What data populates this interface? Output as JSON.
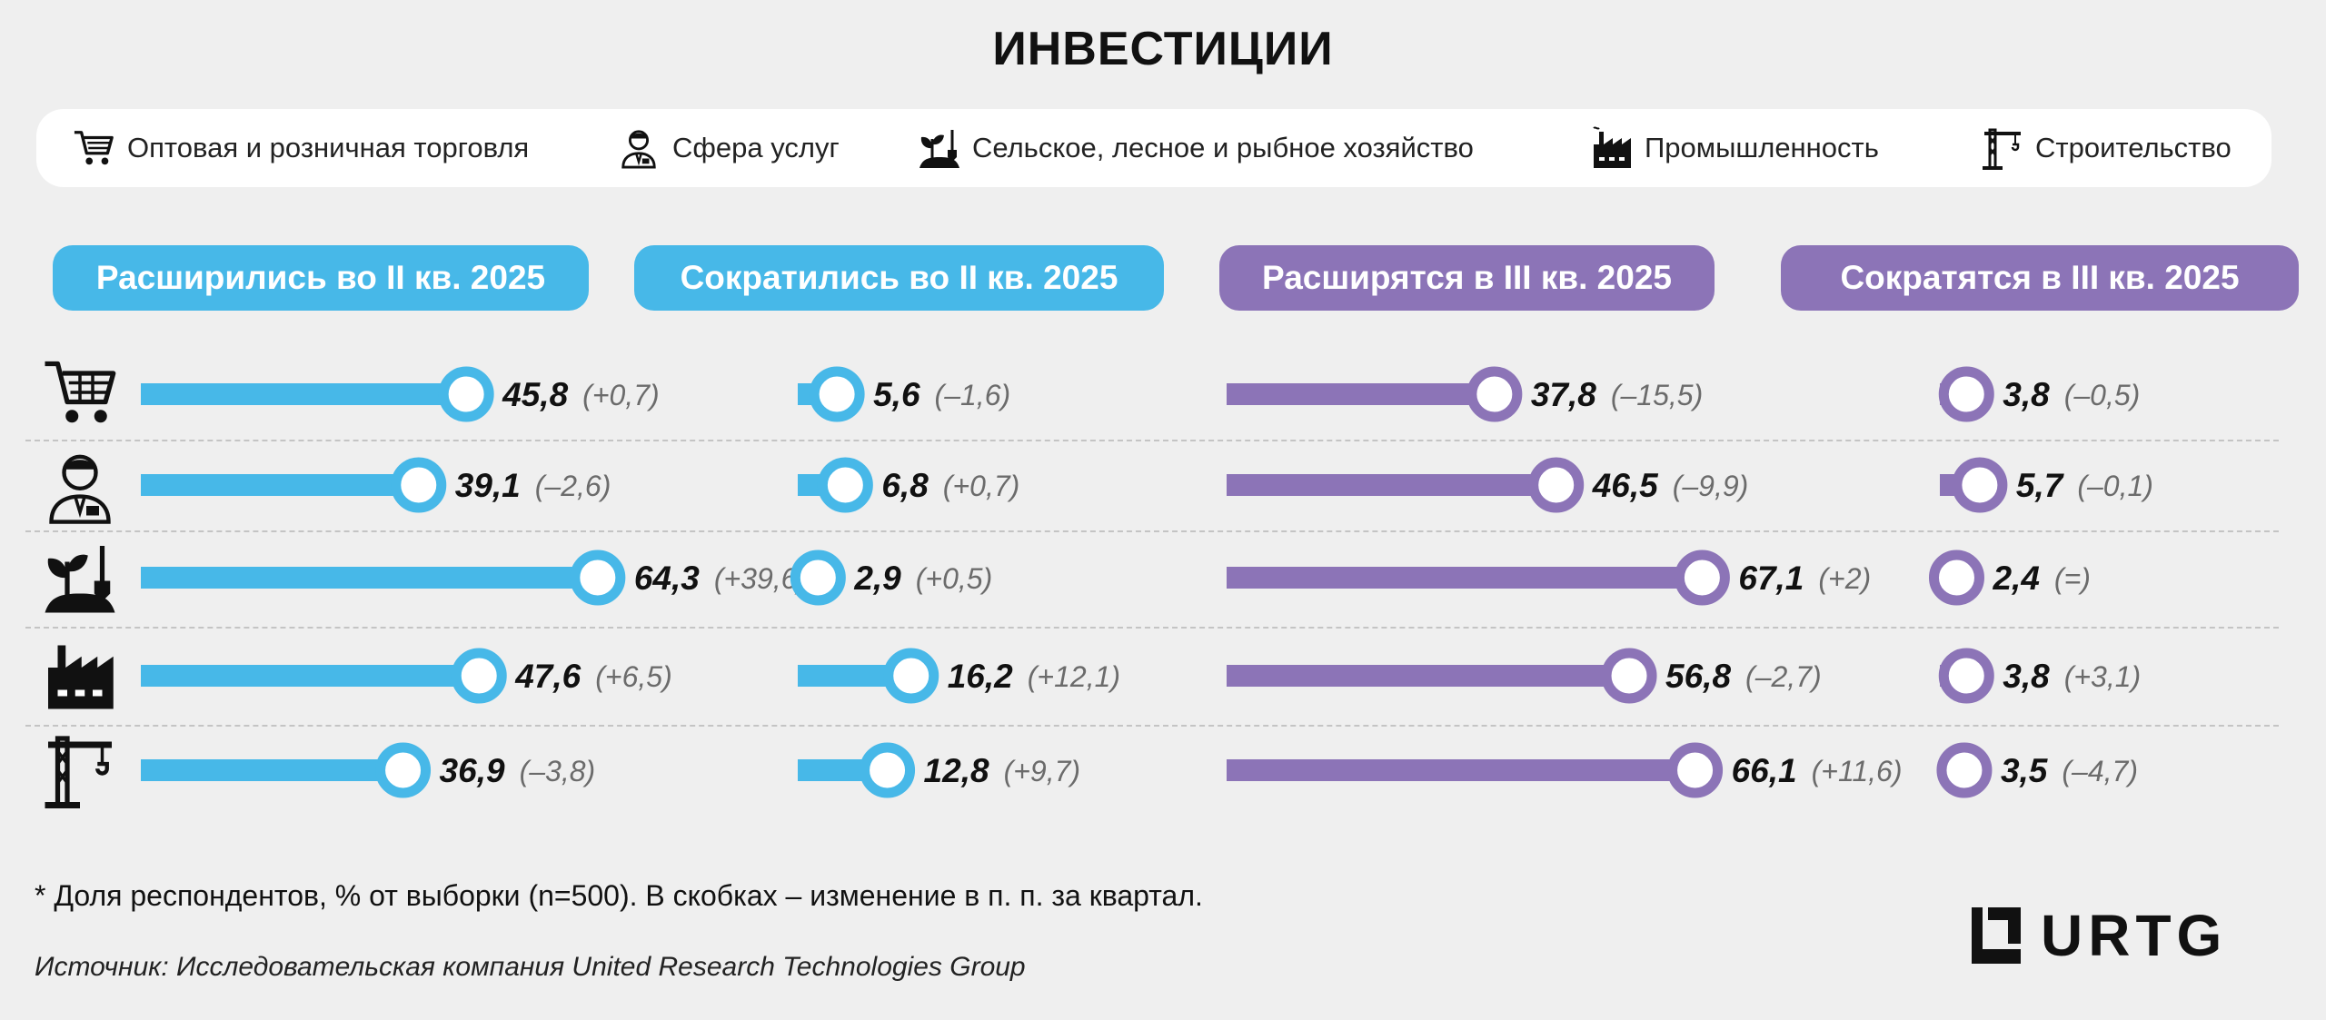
{
  "title": "ИНВЕСТИЦИИ",
  "legend": [
    {
      "label": "Оптовая и розничная торговля",
      "icon": "cart-icon"
    },
    {
      "label": "Сфера услуг",
      "icon": "service-worker-icon"
    },
    {
      "label": "Сельское, лесное и рыбное хозяйство",
      "icon": "plant-shovel-icon"
    },
    {
      "label": "Промышленность",
      "icon": "factory-icon"
    },
    {
      "label": "Строительство",
      "icon": "crane-icon"
    }
  ],
  "colors": {
    "blue": "#47b8e8",
    "purple": "#8c74b7",
    "change_text": "#6b6b6b"
  },
  "chart_data": {
    "type": "bar",
    "categories": [
      "Оптовая и розничная торговля",
      "Сфера услуг",
      "Сельское, лесное и рыбное хозяйство",
      "Промышленность",
      "Строительство"
    ],
    "series": [
      {
        "name": "Расширились во II кв. 2025",
        "color": "#47b8e8",
        "values": [
          45.8,
          39.1,
          64.3,
          47.6,
          36.9
        ],
        "labels": [
          "45,8",
          "39,1",
          "64,3",
          "47,6",
          "36,9"
        ],
        "changes": [
          "(+0,7)",
          "(–2,6)",
          "(+39,6)",
          "(+6,5)",
          "(–3,8)"
        ]
      },
      {
        "name": "Сократились во II кв. 2025",
        "color": "#47b8e8",
        "values": [
          5.6,
          6.8,
          2.9,
          16.2,
          12.8
        ],
        "labels": [
          "5,6",
          "6,8",
          "2,9",
          "16,2",
          "12,8"
        ],
        "changes": [
          "(–1,6)",
          "(+0,7)",
          "(+0,5)",
          "(+12,1)",
          "(+9,7)"
        ]
      },
      {
        "name": "Расширятся в III кв. 2025",
        "color": "#8c74b7",
        "values": [
          37.8,
          46.5,
          67.1,
          56.8,
          66.1
        ],
        "labels": [
          "37,8",
          "46,5",
          "67,1",
          "56,8",
          "66,1"
        ],
        "changes": [
          "(–15,5)",
          "(–9,9)",
          "(+2)",
          "(–2,7)",
          "(+11,6)"
        ]
      },
      {
        "name": "Сократятся в III кв. 2025",
        "color": "#8c74b7",
        "values": [
          3.8,
          5.7,
          2.4,
          3.8,
          3.5
        ],
        "labels": [
          "3,8",
          "5,7",
          "2,4",
          "3,8",
          "3,5"
        ],
        "changes": [
          "(–0,5)",
          "(–0,1)",
          "(=)",
          "(+3,1)",
          "(–4,7)"
        ]
      }
    ]
  },
  "footnote": "* Доля респондентов, % от выборки (n=500). В скобках – изменение в п. п. за квартал.",
  "source": "Источник: Исследовательская компания United Research Technologies Group",
  "logo": {
    "text": "URTG"
  }
}
